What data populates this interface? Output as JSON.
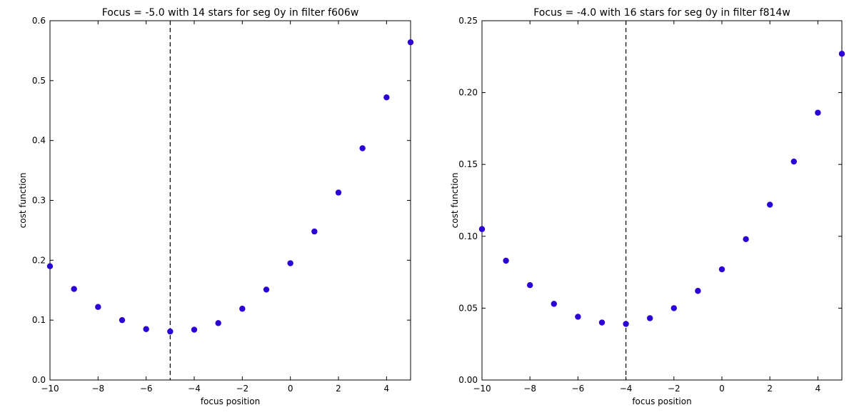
{
  "chart_data": [
    {
      "type": "scatter",
      "title": "Focus = -5.0  with 14 stars for seg 0y in filter f606w",
      "xlabel": "focus position",
      "ylabel": "cost function",
      "xlim": [
        -10,
        5
      ],
      "ylim": [
        0.0,
        0.6
      ],
      "xticks": [
        "−10",
        "−8",
        "−6",
        "−4",
        "−2",
        "0",
        "2",
        "4"
      ],
      "xtick_values": [
        -10,
        -8,
        -6,
        -4,
        -2,
        0,
        2,
        4
      ],
      "yticks": [
        "0.0",
        "0.1",
        "0.2",
        "0.3",
        "0.4",
        "0.5",
        "0.6"
      ],
      "ytick_values": [
        0.0,
        0.1,
        0.2,
        0.3,
        0.4,
        0.5,
        0.6
      ],
      "grid": false,
      "marker_color": "#2a00d6",
      "vline_x": -5.0,
      "x": [
        -10,
        -9,
        -8,
        -7,
        -6,
        -5,
        -4,
        -3,
        -2,
        -1,
        0,
        1,
        2,
        3,
        4,
        5
      ],
      "y": [
        0.19,
        0.152,
        0.122,
        0.1,
        0.085,
        0.081,
        0.084,
        0.095,
        0.119,
        0.151,
        0.195,
        0.248,
        0.313,
        0.387,
        0.472,
        0.564
      ]
    },
    {
      "type": "scatter",
      "title": "Focus = -4.0  with 16 stars for seg 0y in filter f814w",
      "xlabel": "focus position",
      "ylabel": "cost function",
      "xlim": [
        -10,
        5
      ],
      "ylim": [
        0.0,
        0.25
      ],
      "xticks": [
        "−10",
        "−8",
        "−6",
        "−4",
        "−2",
        "0",
        "2",
        "4"
      ],
      "xtick_values": [
        -10,
        -8,
        -6,
        -4,
        -2,
        0,
        2,
        4
      ],
      "yticks": [
        "0.00",
        "0.05",
        "0.10",
        "0.15",
        "0.20",
        "0.25"
      ],
      "ytick_values": [
        0.0,
        0.05,
        0.1,
        0.15,
        0.2,
        0.25
      ],
      "grid": false,
      "marker_color": "#2a00d6",
      "vline_x": -4.0,
      "x": [
        -10,
        -9,
        -8,
        -7,
        -6,
        -5,
        -4,
        -3,
        -2,
        -1,
        0,
        1,
        2,
        3,
        4,
        5
      ],
      "y": [
        0.105,
        0.083,
        0.066,
        0.053,
        0.044,
        0.04,
        0.039,
        0.043,
        0.05,
        0.062,
        0.077,
        0.098,
        0.122,
        0.152,
        0.186,
        0.227
      ]
    }
  ]
}
